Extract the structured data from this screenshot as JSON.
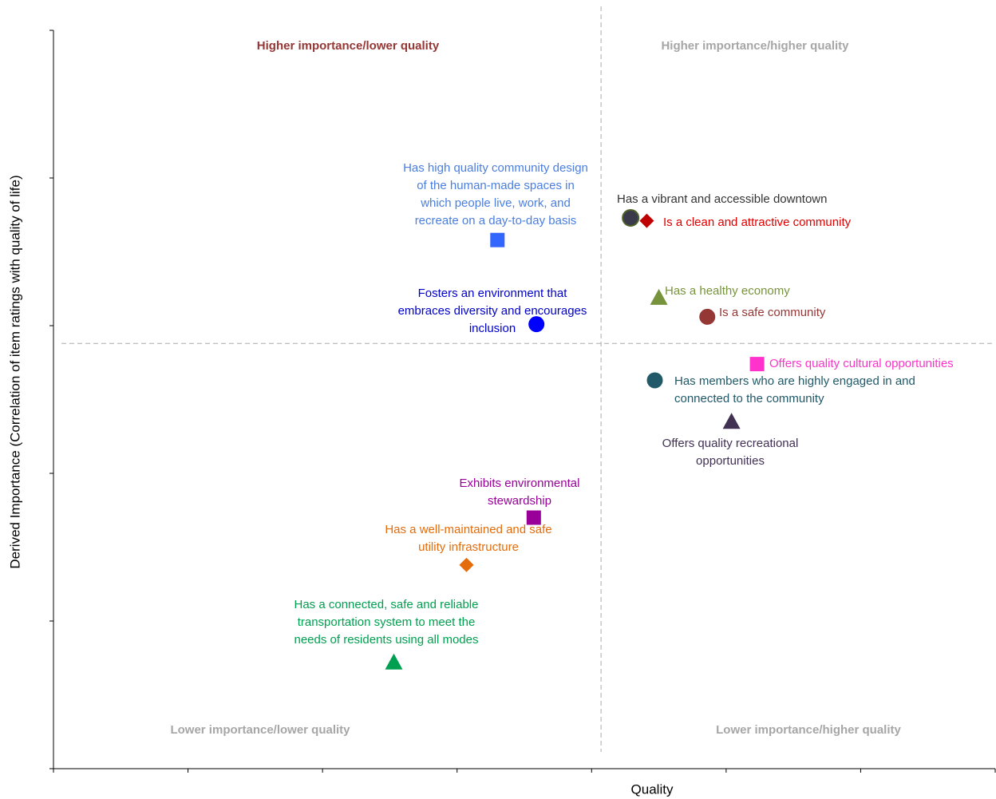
{
  "chart_data": {
    "type": "scatter",
    "x_label": "Quality",
    "y_label": "Derived Importance (Correlation of item ratings with quality of life)",
    "xlim": [
      0,
      7
    ],
    "ylim": [
      0,
      5
    ],
    "xticks": [
      0,
      1,
      2,
      3,
      4,
      5,
      6,
      7
    ],
    "yticks": [
      0,
      1,
      2,
      3,
      4,
      5
    ],
    "divider_x": 4.07,
    "divider_y": 2.88,
    "quadrant_labels": [
      {
        "text": "Higher importance/lower quality",
        "color": "#953735"
      },
      {
        "text": "Higher importance/higher quality",
        "color": "#a6a6a6"
      },
      {
        "text": "Lower importance/lower quality",
        "color": "#a6a6a6"
      },
      {
        "text": "Lower importance/higher quality",
        "color": "#a6a6a6"
      }
    ],
    "points": [
      {
        "label_lines": [
          "Has high quality community design",
          "of the human-made spaces in",
          "which people live, work, and",
          "recreate on a day-to-day basis"
        ],
        "x": 3.3,
        "y": 3.58,
        "marker": "square",
        "color": "#3366ff",
        "label_color": "#4a7ee0"
      },
      {
        "label_lines": [
          "Has a vibrant and accessible downtown"
        ],
        "x": 4.29,
        "y": 3.73,
        "marker": "circle",
        "color": "#3a3a4a",
        "label_color": "#333333"
      },
      {
        "label_lines": [
          "Is a clean and attractive community"
        ],
        "x": 4.41,
        "y": 3.71,
        "marker": "diamond",
        "color": "#c00000",
        "label_color": "#e00000"
      },
      {
        "label_lines": [
          "Has a healthy economy"
        ],
        "x": 4.5,
        "y": 3.19,
        "marker": "triangle",
        "color": "#77933c",
        "label_color": "#77933c"
      },
      {
        "label_lines": [
          "Is a safe community"
        ],
        "x": 4.86,
        "y": 3.06,
        "marker": "circle",
        "color": "#953735",
        "label_color": "#953735"
      },
      {
        "label_lines": [
          "Fosters an environment that",
          "embraces diversity and encourages",
          "inclusion"
        ],
        "x": 3.59,
        "y": 3.01,
        "marker": "circle",
        "color": "#0000ff",
        "label_color": "#0000cc"
      },
      {
        "label_lines": [
          "Offers quality cultural opportunities"
        ],
        "x": 5.23,
        "y": 2.74,
        "marker": "square",
        "color": "#ff33cc",
        "label_color": "#ff33cc"
      },
      {
        "label_lines": [
          "Has members who are highly engaged in and",
          "connected to the community"
        ],
        "x": 4.47,
        "y": 2.63,
        "marker": "circle",
        "color": "#215968",
        "label_color": "#215968"
      },
      {
        "label_lines": [
          "Offers quality recreational",
          "opportunities"
        ],
        "x": 5.04,
        "y": 2.35,
        "marker": "triangle",
        "color": "#403152",
        "label_color": "#403152"
      },
      {
        "label_lines": [
          "Exhibits environmental",
          "stewardship"
        ],
        "x": 3.57,
        "y": 1.7,
        "marker": "square",
        "color": "#990099",
        "label_color": "#990099"
      },
      {
        "label_lines": [
          "Has a well-maintained and safe",
          "utility infrastructure"
        ],
        "x": 3.07,
        "y": 1.38,
        "marker": "diamond",
        "color": "#e46c0a",
        "label_color": "#e46c0a"
      },
      {
        "label_lines": [
          "Has a connected, safe and reliable",
          "transportation system to meet the",
          "needs of residents using all modes"
        ],
        "x": 2.53,
        "y": 0.72,
        "marker": "triangle",
        "color": "#00a050",
        "label_color": "#00a050"
      }
    ]
  }
}
